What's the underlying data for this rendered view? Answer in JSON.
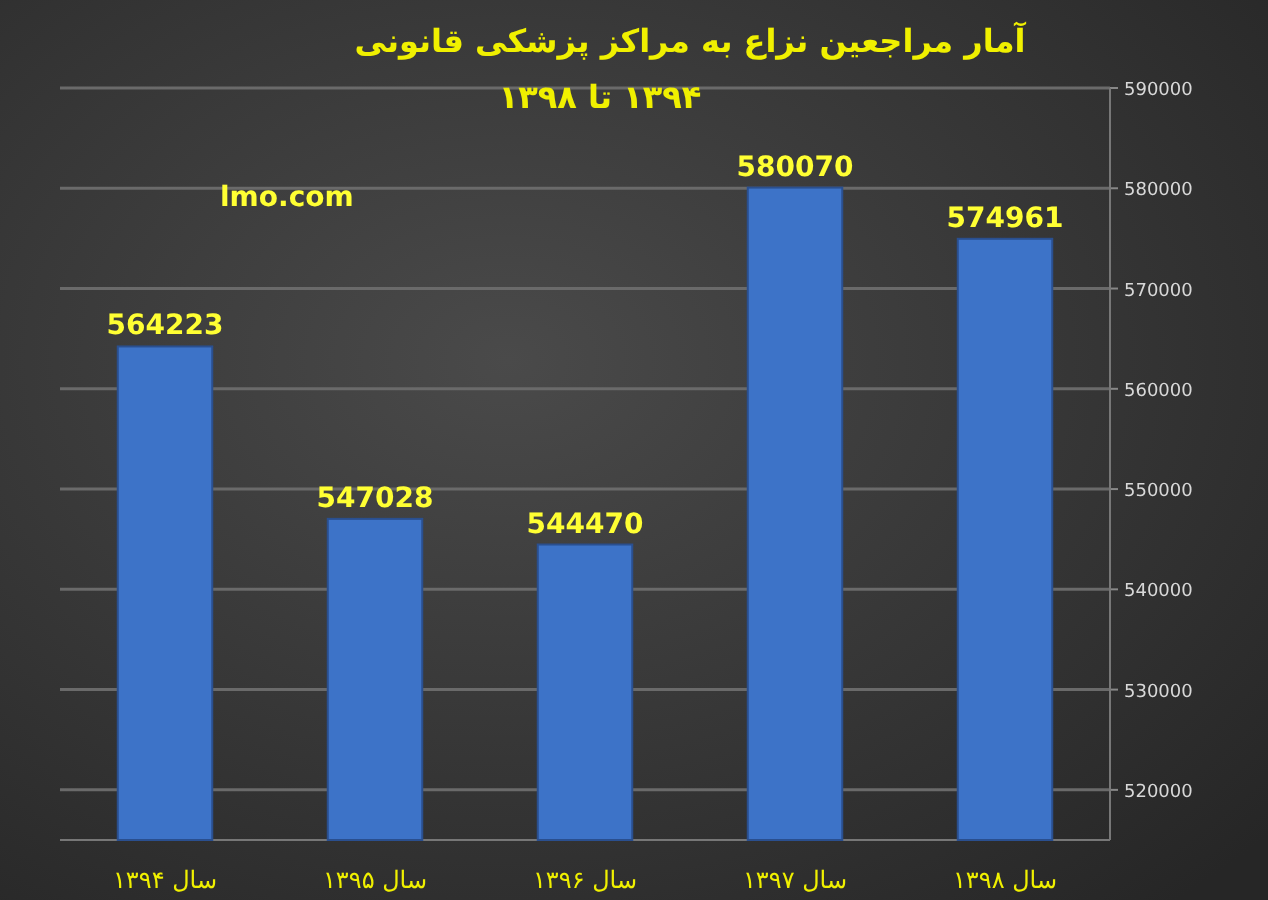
{
  "chart_data": {
    "type": "bar",
    "title": "آمار مراجعین نزاع به مراکز پزشکی قانونی",
    "subtitle": "۱۳۹۴ تا ۱۳۹۸",
    "categories": [
      "سال ۱۳۹۴",
      "سال ۱۳۹۵",
      "سال ۱۳۹۶",
      "سال ۱۳۹۷",
      "سال ۱۳۹۸"
    ],
    "values": [
      564223,
      547028,
      544470,
      580070,
      574961
    ],
    "color": "#3d73c8",
    "ylim": [
      515000,
      590000
    ],
    "yticks": [
      520000,
      530000,
      540000,
      550000,
      560000,
      570000,
      580000,
      590000
    ],
    "grid": "y",
    "data_labels": true,
    "annotations": [
      "lmo.com"
    ]
  }
}
